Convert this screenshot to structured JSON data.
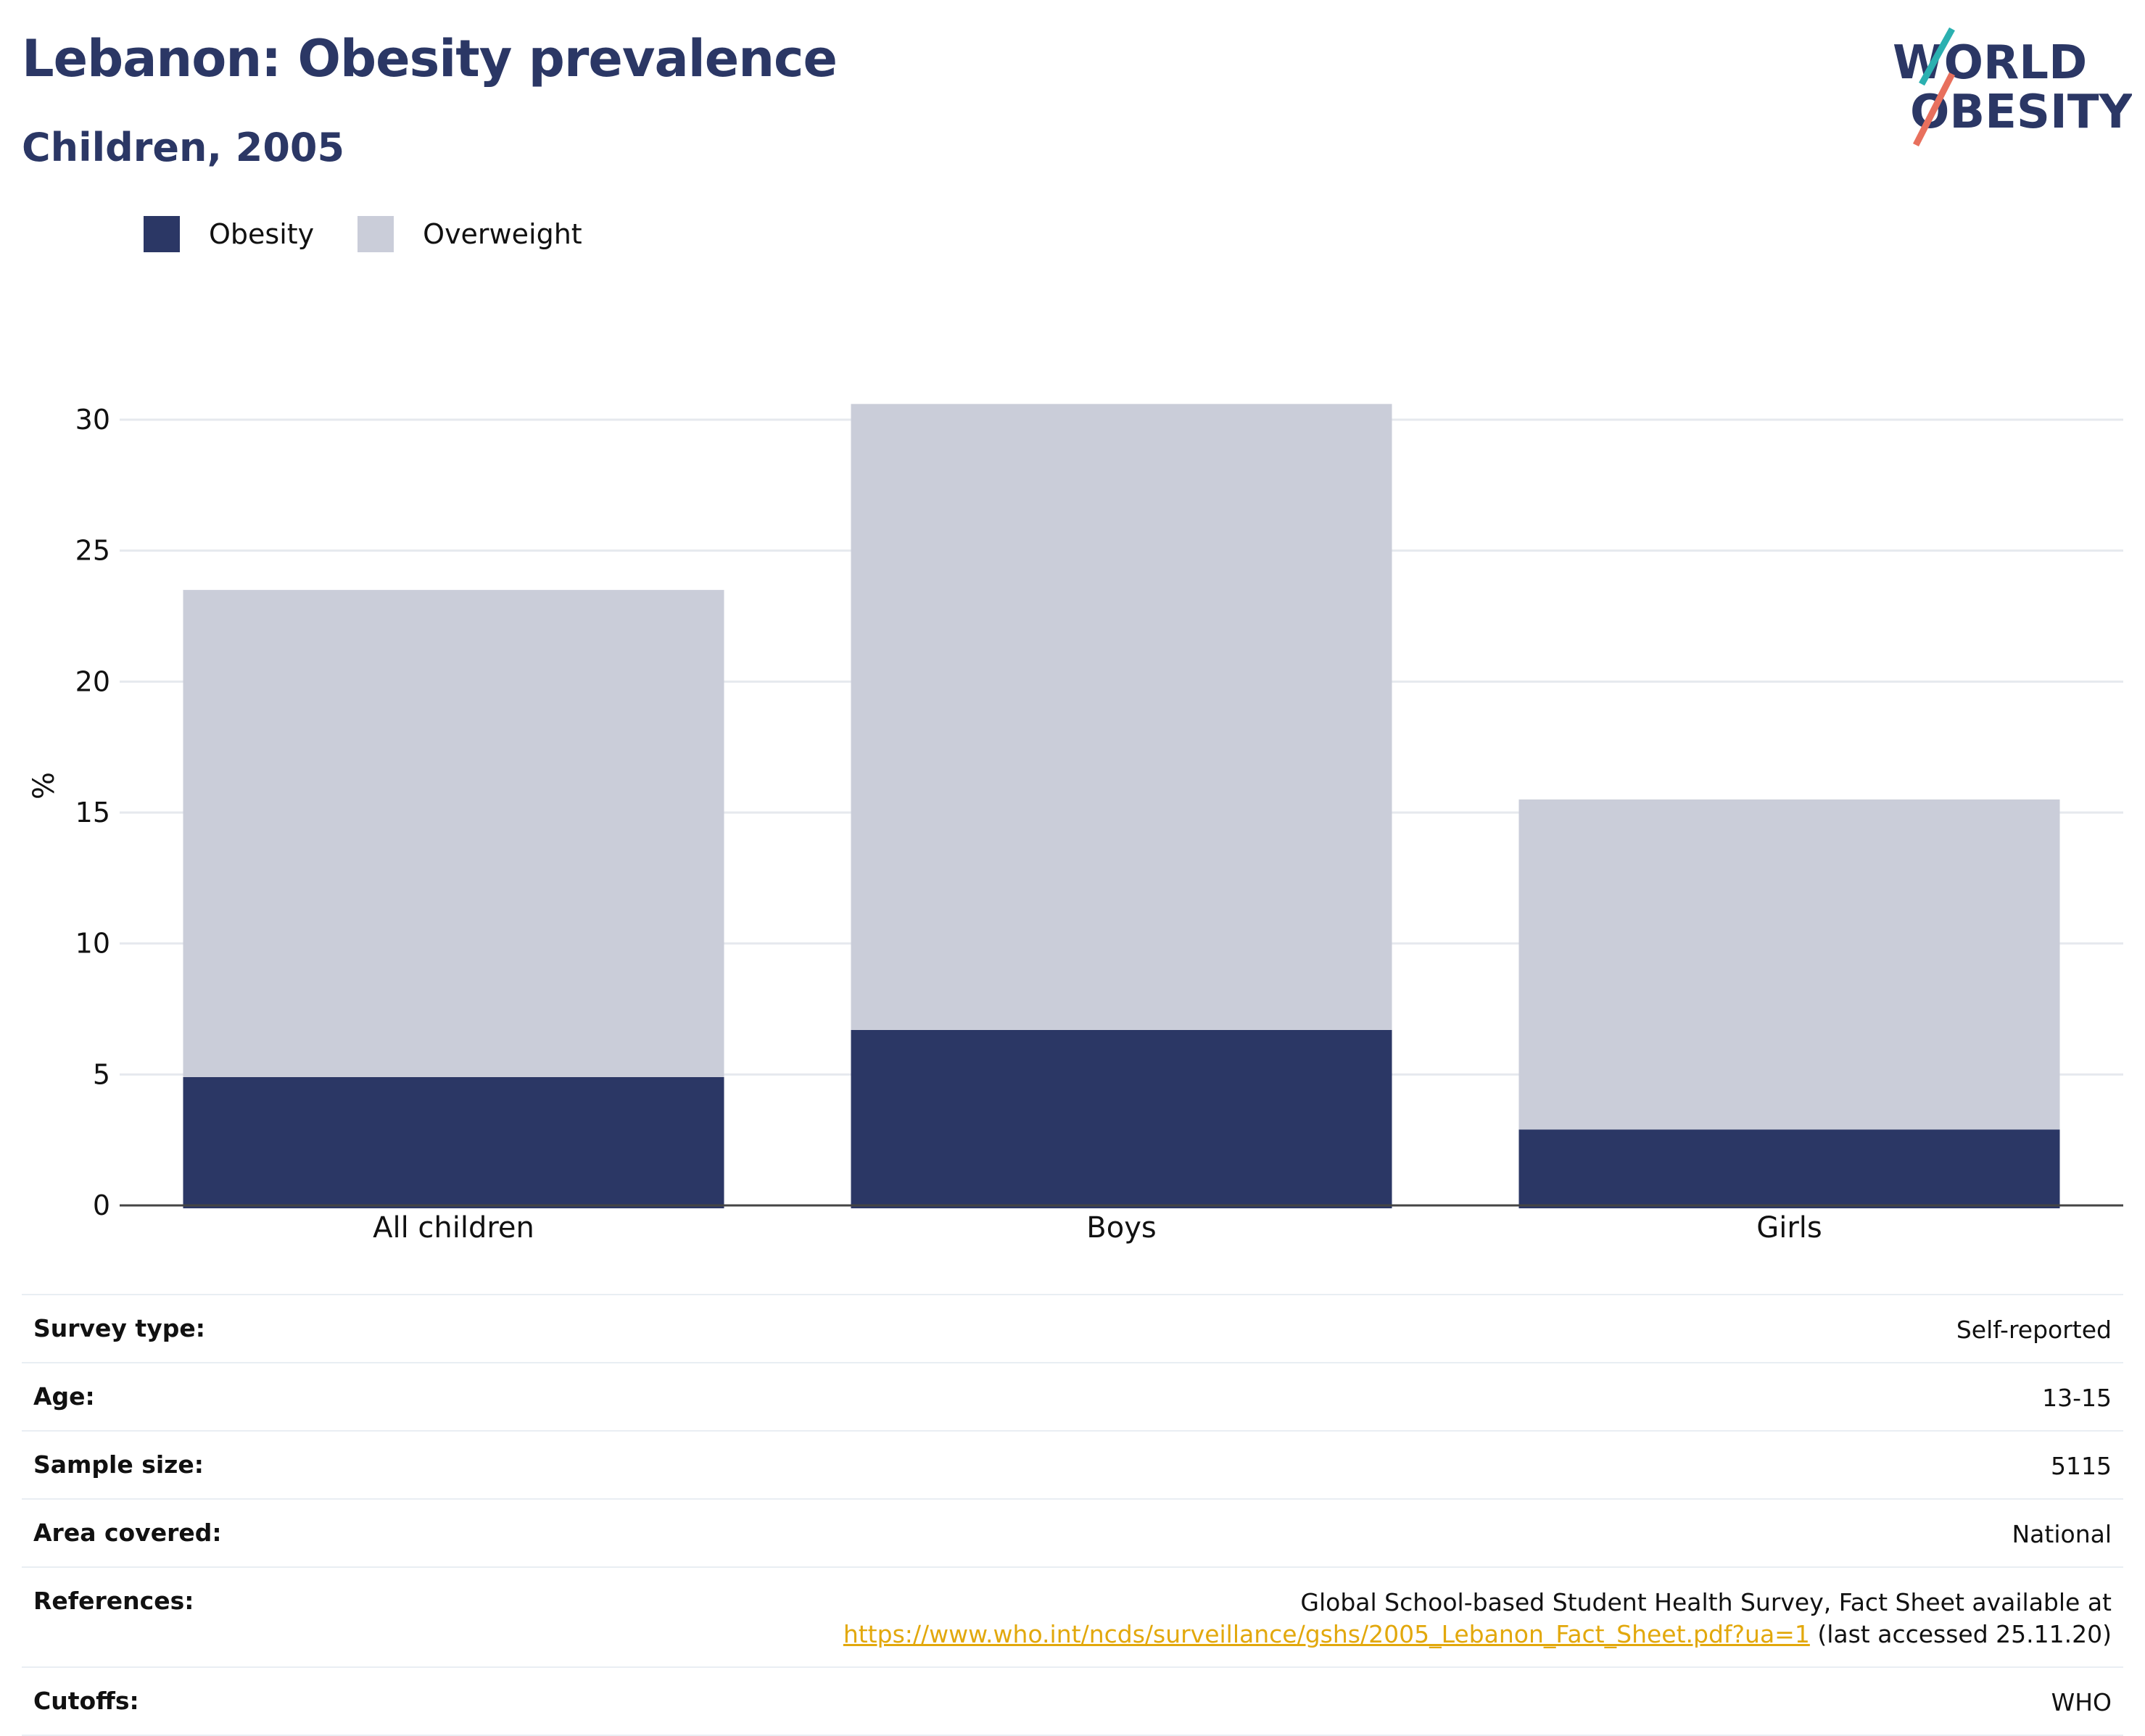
{
  "header": {
    "title": "Lebanon: Obesity prevalence",
    "subtitle": "Children, 2005"
  },
  "logo": {
    "line1": "WORLD",
    "line2": "OBESITY",
    "colors": {
      "navy": "#2b3765",
      "teal": "#2bb0b0",
      "coral": "#e8705d"
    }
  },
  "legend": {
    "items": [
      {
        "label": "Obesity",
        "color": "#2b3765"
      },
      {
        "label": "Overweight",
        "color": "#cacdd9"
      }
    ]
  },
  "chart_data": {
    "type": "bar",
    "stacked": true,
    "categories": [
      "All children",
      "Boys",
      "Girls"
    ],
    "series": [
      {
        "name": "Obesity",
        "values": [
          4.9,
          6.7,
          2.9
        ],
        "color": "#2b3765"
      },
      {
        "name": "Overweight",
        "values": [
          18.6,
          23.9,
          12.6
        ],
        "color": "#cacdd9"
      }
    ],
    "totals": [
      23.5,
      30.6,
      15.5
    ],
    "ylabel": "%",
    "ylim": [
      0,
      30.6
    ],
    "yticks": [
      0,
      5,
      10,
      15,
      20,
      25,
      30
    ],
    "grid": true,
    "legend_position": "top-left"
  },
  "info": {
    "rows": [
      {
        "key": "Survey type:",
        "value": "Self-reported"
      },
      {
        "key": "Age:",
        "value": "13-15"
      },
      {
        "key": "Sample size:",
        "value": "5115"
      },
      {
        "key": "Area covered:",
        "value": "National"
      },
      {
        "key": "References:",
        "value_line1": "Global School-based Student Health Survey, Fact Sheet available at",
        "link": "https://www.who.int/ncds/surveillance/gshs/2005_Lebanon_Fact_Sheet.pdf?ua=1",
        "value_suffix": " (last accessed 25.11.20)"
      },
      {
        "key": "Cutoffs:",
        "value": "WHO"
      }
    ],
    "link_color": "#e2a80c"
  }
}
